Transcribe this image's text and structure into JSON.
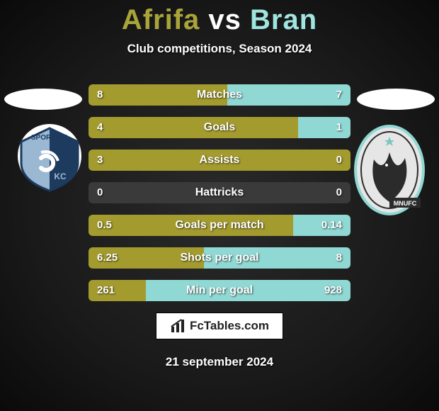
{
  "title": {
    "player1": "Afrifa",
    "vs": "vs",
    "player2": "Bran",
    "player1_color": "#a9a43a",
    "player2_color": "#9fe5e0"
  },
  "subtitle": "Club competitions, Season 2024",
  "colors": {
    "bar_left": "#a39b2e",
    "bar_right": "#8fd8d3",
    "bar_bg": "#3a3a3a"
  },
  "stats": [
    {
      "label": "Matches",
      "left_val": "8",
      "right_val": "7",
      "left_pct": 53,
      "right_pct": 47
    },
    {
      "label": "Goals",
      "left_val": "4",
      "right_val": "1",
      "left_pct": 80,
      "right_pct": 20
    },
    {
      "label": "Assists",
      "left_val": "3",
      "right_val": "0",
      "left_pct": 100,
      "right_pct": 0
    },
    {
      "label": "Hattricks",
      "left_val": "0",
      "right_val": "0",
      "left_pct": 0,
      "right_pct": 0
    },
    {
      "label": "Goals per match",
      "left_val": "0.5",
      "right_val": "0.14",
      "left_pct": 78,
      "right_pct": 22
    },
    {
      "label": "Shots per goal",
      "left_val": "6.25",
      "right_val": "8",
      "left_pct": 44,
      "right_pct": 56
    },
    {
      "label": "Min per goal",
      "left_val": "261",
      "right_val": "928",
      "left_pct": 22,
      "right_pct": 78
    }
  ],
  "footer_brand": "FcTables.com",
  "date": "21 september 2024",
  "badges": {
    "left_alt": "Sporting KC crest",
    "right_alt": "MNUFC crest"
  }
}
